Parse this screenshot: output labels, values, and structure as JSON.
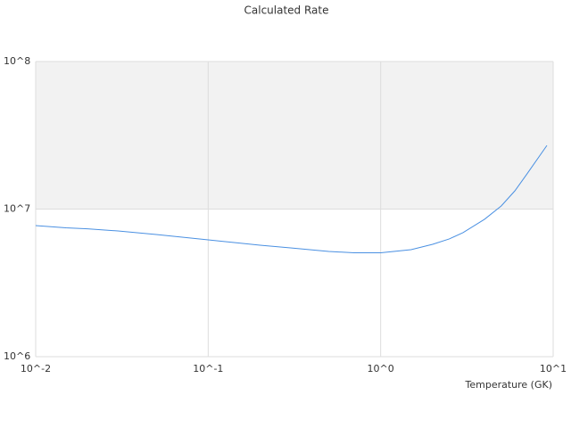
{
  "chart_data": {
    "type": "line",
    "title": "Calculated Rate",
    "x_label": "Temperature (GK)",
    "x": [
      0.01,
      0.015,
      0.02,
      0.03,
      0.05,
      0.1,
      0.2,
      0.3,
      0.5,
      0.7,
      1,
      1.5,
      2,
      2.5,
      3,
      4,
      5,
      6,
      7,
      9.2
    ],
    "series": [
      {
        "color": "#4a90e2",
        "values": [
          7730000,
          7470000,
          7350000,
          7110000,
          6730000,
          6190000,
          5690000,
          5460000,
          5160000,
          5060000,
          5060000,
          5310000,
          5770000,
          6280000,
          6920000,
          8530000,
          10500000,
          13300000,
          17100000,
          27000000
        ]
      }
    ],
    "xlog": true,
    "ylog": true,
    "xlim": [
      0.01,
      10
    ],
    "ylim": [
      1000000,
      100000000
    ],
    "xticks": [
      {
        "value": 0.01,
        "label": "10^-2"
      },
      {
        "value": 0.1,
        "label": "10^-1"
      },
      {
        "value": 1,
        "label": "10^0"
      },
      {
        "value": 10,
        "label": "10^1"
      }
    ],
    "yticks": [
      {
        "value": 1000000,
        "label": "10^6"
      },
      {
        "value": 10000000,
        "label": "10^7"
      },
      {
        "value": 100000000,
        "label": "10^8"
      }
    ],
    "band_color": "#f2f2f2"
  }
}
